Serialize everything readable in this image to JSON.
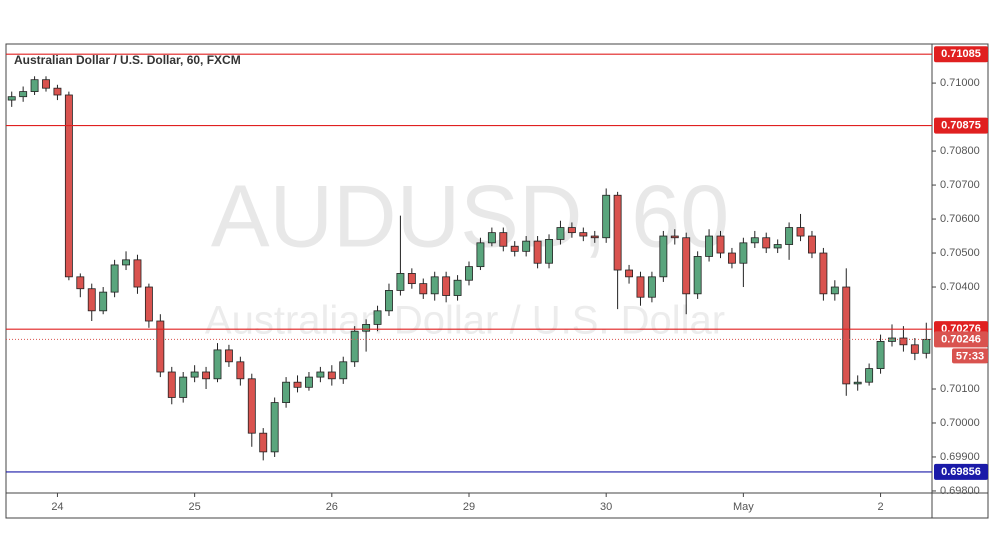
{
  "chart_data": {
    "type": "candlestick",
    "title": "Australian Dollar / U.S. Dollar, 60, FXCM",
    "watermark": "AUDUSD, 60",
    "watermark_subtitle": "Australian Dollar / U.S. Dollar",
    "x": [
      1,
      3,
      5,
      7,
      9,
      11,
      13,
      15,
      17,
      19,
      21,
      23,
      25,
      27,
      29,
      31,
      33,
      35,
      37,
      39,
      41,
      43,
      45,
      47,
      49,
      51,
      53,
      55,
      57,
      59,
      61,
      63,
      65,
      67,
      69,
      71,
      73,
      75,
      77,
      79,
      81,
      83,
      85,
      87,
      89,
      91,
      93,
      95,
      97,
      99,
      101,
      103,
      105,
      107,
      109,
      111,
      113,
      115,
      117,
      119,
      121,
      123,
      125,
      127,
      129,
      131,
      133,
      135,
      137,
      139,
      141,
      143,
      145,
      147,
      149,
      151,
      153,
      155,
      157,
      159,
      161
    ],
    "open": [
      0.7095,
      0.7096,
      0.70975,
      0.7101,
      0.70985,
      0.70965,
      0.7043,
      0.70395,
      0.7033,
      0.70385,
      0.70465,
      0.7048,
      0.704,
      0.703,
      0.7015,
      0.70075,
      0.70135,
      0.7015,
      0.7013,
      0.70215,
      0.7018,
      0.7013,
      0.6997,
      0.69915,
      0.7006,
      0.7012,
      0.70105,
      0.70135,
      0.7015,
      0.7013,
      0.7018,
      0.7027,
      0.7029,
      0.7033,
      0.7039,
      0.7044,
      0.7041,
      0.7038,
      0.7043,
      0.70375,
      0.7042,
      0.7046,
      0.7053,
      0.7056,
      0.7052,
      0.70505,
      0.70535,
      0.7047,
      0.7054,
      0.70575,
      0.7056,
      0.7055,
      0.70545,
      0.7067,
      0.7045,
      0.7043,
      0.7037,
      0.7043,
      0.7055,
      0.70545,
      0.7038,
      0.7049,
      0.7055,
      0.705,
      0.7047,
      0.7053,
      0.70545,
      0.70515,
      0.70525,
      0.70575,
      0.7055,
      0.705,
      0.7038,
      0.704,
      0.70115,
      0.7012,
      0.7016,
      0.7024,
      0.7025,
      0.7023,
      0.70205
    ],
    "high": [
      0.70975,
      0.7099,
      0.7102,
      0.7102,
      0.70995,
      0.70975,
      0.7044,
      0.7041,
      0.704,
      0.7048,
      0.70505,
      0.70495,
      0.7041,
      0.7032,
      0.70165,
      0.7015,
      0.7017,
      0.70165,
      0.70235,
      0.7023,
      0.70195,
      0.70145,
      0.69985,
      0.70075,
      0.70135,
      0.7014,
      0.7015,
      0.70165,
      0.7017,
      0.70195,
      0.70285,
      0.70305,
      0.70345,
      0.7041,
      0.7061,
      0.70455,
      0.70425,
      0.70445,
      0.70445,
      0.70435,
      0.70475,
      0.70545,
      0.70575,
      0.70575,
      0.70535,
      0.7055,
      0.7055,
      0.70555,
      0.70595,
      0.7059,
      0.70575,
      0.70565,
      0.7069,
      0.7068,
      0.70465,
      0.70445,
      0.70445,
      0.70565,
      0.7057,
      0.7056,
      0.70505,
      0.7057,
      0.70565,
      0.70515,
      0.70545,
      0.70565,
      0.7056,
      0.7054,
      0.7059,
      0.70615,
      0.70565,
      0.70515,
      0.7042,
      0.70455,
      0.7014,
      0.70175,
      0.7026,
      0.7029,
      0.70285,
      0.7025,
      0.70295
    ],
    "low": [
      0.7093,
      0.70945,
      0.70965,
      0.70975,
      0.7095,
      0.7042,
      0.7037,
      0.703,
      0.7032,
      0.7037,
      0.7045,
      0.7038,
      0.7028,
      0.70135,
      0.70055,
      0.7006,
      0.7012,
      0.701,
      0.7012,
      0.70165,
      0.7011,
      0.6993,
      0.6989,
      0.699,
      0.70045,
      0.7009,
      0.70095,
      0.7012,
      0.7011,
      0.70115,
      0.70165,
      0.7021,
      0.7027,
      0.70315,
      0.70375,
      0.70395,
      0.70365,
      0.7036,
      0.70355,
      0.7036,
      0.70405,
      0.7045,
      0.7052,
      0.70505,
      0.7049,
      0.7049,
      0.70455,
      0.70455,
      0.70525,
      0.70545,
      0.70535,
      0.7053,
      0.7053,
      0.70335,
      0.7041,
      0.70345,
      0.70355,
      0.70415,
      0.70525,
      0.7032,
      0.70365,
      0.70475,
      0.70485,
      0.70455,
      0.704,
      0.70515,
      0.705,
      0.705,
      0.7048,
      0.70535,
      0.70485,
      0.7036,
      0.7036,
      0.7008,
      0.70095,
      0.7011,
      0.70145,
      0.70225,
      0.7021,
      0.70185,
      0.7019
    ],
    "close": [
      0.7096,
      0.70975,
      0.7101,
      0.70985,
      0.70965,
      0.7043,
      0.70395,
      0.7033,
      0.70385,
      0.70465,
      0.7048,
      0.704,
      0.703,
      0.7015,
      0.70075,
      0.70135,
      0.7015,
      0.7013,
      0.70215,
      0.7018,
      0.7013,
      0.6997,
      0.69915,
      0.7006,
      0.7012,
      0.70105,
      0.70135,
      0.7015,
      0.7013,
      0.7018,
      0.7027,
      0.7029,
      0.7033,
      0.7039,
      0.7044,
      0.7041,
      0.7038,
      0.7043,
      0.70375,
      0.7042,
      0.7046,
      0.7053,
      0.7056,
      0.7052,
      0.70505,
      0.70535,
      0.7047,
      0.7054,
      0.70575,
      0.7056,
      0.7055,
      0.70545,
      0.7067,
      0.7045,
      0.7043,
      0.7037,
      0.7043,
      0.7055,
      0.70545,
      0.7038,
      0.7049,
      0.7055,
      0.705,
      0.7047,
      0.7053,
      0.70545,
      0.70515,
      0.70525,
      0.70575,
      0.7055,
      0.705,
      0.7038,
      0.704,
      0.70115,
      0.7012,
      0.7016,
      0.7024,
      0.7025,
      0.7023,
      0.70205,
      0.70246
    ],
    "up_color": "#5aa57d",
    "down_color": "#d9534f",
    "xlim": [
      0,
      162
    ],
    "xticks": [
      {
        "value": 9,
        "label": "24"
      },
      {
        "value": 33,
        "label": "25"
      },
      {
        "value": 57,
        "label": "26"
      },
      {
        "value": 81,
        "label": "29"
      },
      {
        "value": 105,
        "label": "30"
      },
      {
        "value": 129,
        "label": "May"
      },
      {
        "value": 153,
        "label": "2"
      }
    ],
    "ylim": [
      0.69794,
      0.71115
    ],
    "yticks": [
      {
        "value": 0.71,
        "label": "0.71000"
      },
      {
        "value": 0.708,
        "label": "0.70800"
      },
      {
        "value": 0.707,
        "label": "0.70700"
      },
      {
        "value": 0.706,
        "label": "0.70600"
      },
      {
        "value": 0.705,
        "label": "0.70500"
      },
      {
        "value": 0.704,
        "label": "0.70400"
      },
      {
        "value": 0.701,
        "label": "0.70100"
      },
      {
        "value": 0.7,
        "label": "0.70000"
      },
      {
        "value": 0.699,
        "label": "0.69900"
      },
      {
        "value": 0.698,
        "label": "0.69800"
      }
    ],
    "grid": false,
    "levels": [
      {
        "value": 0.71085,
        "color": "#e02020"
      },
      {
        "value": 0.70875,
        "color": "#e02020"
      },
      {
        "value": 0.70276,
        "color": "#e02020"
      },
      {
        "value": 0.69856,
        "color": "#1a1aa8"
      }
    ],
    "last_price": 0.70246,
    "last_price_color": "#d9534f",
    "countdown": "57:33"
  }
}
